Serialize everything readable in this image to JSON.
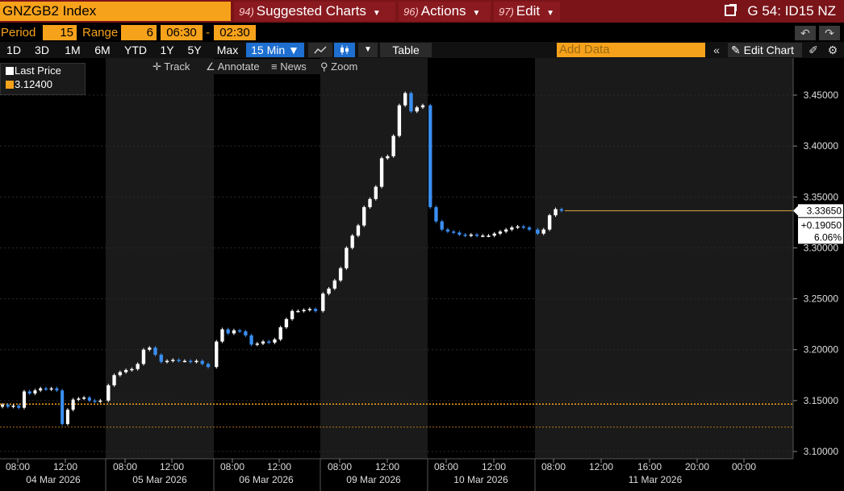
{
  "title_bar": {
    "ticker": "GNZGB2 Index",
    "menus": [
      {
        "num": "94)",
        "label": "Suggested Charts"
      },
      {
        "num": "96)",
        "label": "Actions"
      },
      {
        "num": "97)",
        "label": "Edit"
      }
    ],
    "right_label": "G 54: ID15 NZ"
  },
  "controls": {
    "period_label": "Period",
    "period_value": "15",
    "range_label": "Range",
    "range_value": "6",
    "time_start": "06:30",
    "time_sep": "-",
    "time_end": "02:30",
    "undo_icon": "↶",
    "redo_icon": "↷"
  },
  "ranges": [
    "1D",
    "3D",
    "1M",
    "6M",
    "YTD",
    "1Y",
    "5Y",
    "Max"
  ],
  "interval_selector": "15 Min ▼",
  "table_label": "Table",
  "add_data_placeholder": "Add Data",
  "collapse_icon": "«",
  "edit_chart_label": "Edit Chart",
  "chart_tools": [
    {
      "icon": "✛",
      "label": "Track"
    },
    {
      "icon": "∠",
      "label": "Annotate"
    },
    {
      "icon": "≡",
      "label": "News"
    },
    {
      "icon": "⚲",
      "label": "Zoom"
    }
  ],
  "legend": {
    "items": [
      {
        "label": "Last Price",
        "color": "#ffffff"
      },
      {
        "label": "3.12400",
        "color": "#f7a21b"
      }
    ]
  },
  "readout": {
    "last": "3.33650",
    "change": "+0.19050",
    "pct": "6.06%"
  },
  "colors": {
    "up": "#ffffff",
    "down": "#3a8ef0",
    "accent": "#f7a21b",
    "header": "#7a1419",
    "band": "#1a1a1a"
  },
  "chart_data": {
    "type": "candlestick",
    "title": "",
    "xlabel": "",
    "ylabel": "",
    "ylim": [
      3.09,
      3.48
    ],
    "y_ticks": [
      "3.45000",
      "3.40000",
      "3.35000",
      "3.30000",
      "3.25000",
      "3.20000",
      "3.15000",
      "3.10000"
    ],
    "y_tick_values": [
      3.45,
      3.4,
      3.35,
      3.3,
      3.25,
      3.2,
      3.15,
      3.1
    ],
    "reference_lines": [
      3.1465,
      3.124
    ],
    "last_price_line": 3.3365,
    "days": [
      {
        "date": "04 Mar 2026",
        "times": [
          "08:00",
          "12:00"
        ]
      },
      {
        "date": "05 Mar 2026",
        "times": [
          "08:00",
          "12:00"
        ]
      },
      {
        "date": "06 Mar 2026",
        "times": [
          "08:00",
          "12:00"
        ]
      },
      {
        "date": "09 Mar 2026",
        "times": [
          "08:00",
          "12:00"
        ]
      },
      {
        "date": "10 Mar 2026",
        "times": [
          "08:00",
          "12:00"
        ]
      },
      {
        "date": "11 Mar 2026",
        "times": [
          "08:00",
          "12:00",
          "16:00",
          "20:00",
          "00:00"
        ]
      }
    ],
    "series": [
      {
        "day": 0,
        "closes": [
          3.146,
          3.144,
          3.145,
          3.143,
          3.159,
          3.157,
          3.16,
          3.162,
          3.161,
          3.162,
          3.16,
          3.127,
          3.141,
          3.151,
          3.152,
          3.153,
          3.15,
          3.149,
          3.15
        ]
      },
      {
        "day": 1,
        "closes": [
          3.165,
          3.175,
          3.178,
          3.18,
          3.181,
          3.186,
          3.2,
          3.202,
          3.195,
          3.188,
          3.189,
          3.19,
          3.189,
          3.189,
          3.188,
          3.189,
          3.186,
          3.183
        ]
      },
      {
        "day": 2,
        "closes": [
          3.208,
          3.22,
          3.216,
          3.219,
          3.218,
          3.214,
          3.205,
          3.206,
          3.208,
          3.207,
          3.21,
          3.222,
          3.23,
          3.238,
          3.238,
          3.239,
          3.24,
          3.238
        ]
      },
      {
        "day": 3,
        "closes": [
          3.255,
          3.26,
          3.268,
          3.28,
          3.3,
          3.312,
          3.322,
          3.34,
          3.348,
          3.36,
          3.388,
          3.39,
          3.41,
          3.44,
          3.452,
          3.434,
          3.438,
          3.44
        ]
      },
      {
        "day": 4,
        "closes": [
          3.34,
          3.326,
          3.318,
          3.316,
          3.315,
          3.313,
          3.312,
          3.313,
          3.312,
          3.312,
          3.312,
          3.314,
          3.316,
          3.318,
          3.32,
          3.321,
          3.32,
          3.318
        ]
      },
      {
        "day": 5,
        "closes": [
          3.314,
          3.318,
          3.332,
          3.338,
          3.3365
        ]
      }
    ]
  }
}
